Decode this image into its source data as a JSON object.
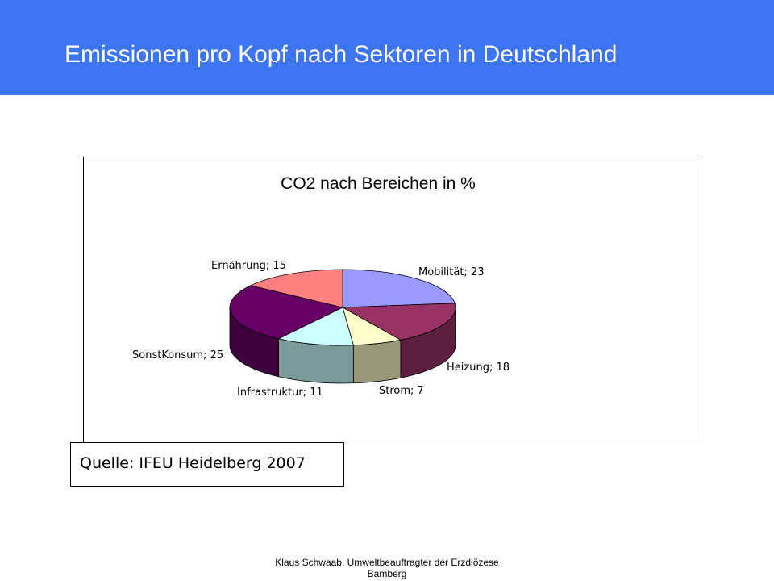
{
  "slide": {
    "title": "Emissionen pro Kopf nach Sektoren in Deutschland",
    "header_color": "#3d74f0",
    "source": "Quelle: IFEU Heidelberg 2007",
    "footer_line1": "Klaus Schwaab, Umweltbeauftragter der Erzdiözese",
    "footer_line2": "Bamberg"
  },
  "chart_data": {
    "type": "pie",
    "style": "3d",
    "title": "CO2 nach Bereichen in %",
    "legend": "none",
    "slices": [
      {
        "label": "Mobilität",
        "value": 23,
        "display": "Mobilität; 23",
        "color": "#9999ff"
      },
      {
        "label": "Heizung",
        "value": 18,
        "display": "Heizung; 18",
        "color": "#993366"
      },
      {
        "label": "Strom",
        "value": 7,
        "display": "Strom; 7",
        "color": "#ffffcc"
      },
      {
        "label": "Infrastruktur",
        "value": 11,
        "display": "Infrastruktur; 11",
        "color": "#ccffff"
      },
      {
        "label": "SonstKonsum",
        "value": 25,
        "display": "SonstKonsum; 25",
        "color": "#660066"
      },
      {
        "label": "Ernährung",
        "value": 15,
        "display": "Ernährung; 15",
        "color": "#ff8080"
      }
    ]
  }
}
